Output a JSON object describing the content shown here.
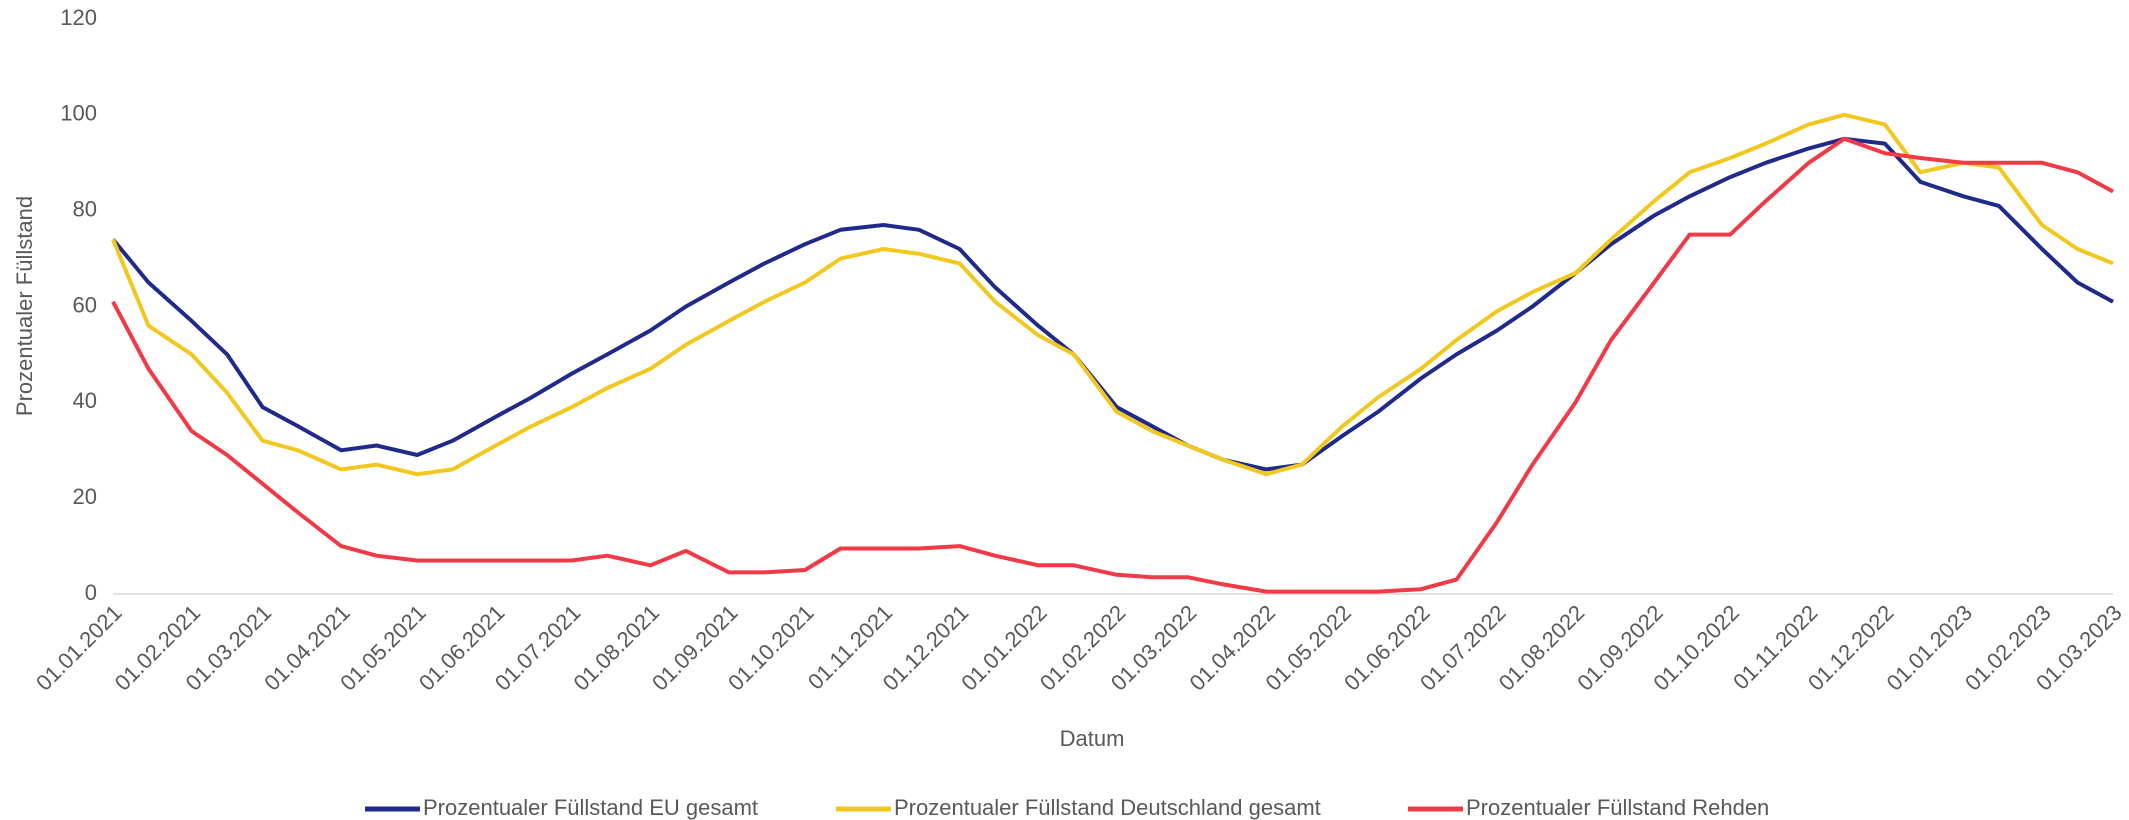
{
  "chart_data": {
    "type": "line",
    "xlabel": "Datum",
    "ylabel": "Prozentualer Füllstand",
    "x": [
      "01.01.2021",
      "15.01.2021",
      "01.02.2021",
      "15.02.2021",
      "01.03.2021",
      "15.03.2021",
      "01.04.2021",
      "15.04.2021",
      "01.05.2021",
      "15.05.2021",
      "01.06.2021",
      "15.06.2021",
      "01.07.2021",
      "15.07.2021",
      "01.08.2021",
      "15.08.2021",
      "01.09.2021",
      "15.09.2021",
      "01.10.2021",
      "15.10.2021",
      "01.11.2021",
      "15.11.2021",
      "01.12.2021",
      "15.12.2021",
      "01.01.2022",
      "15.01.2022",
      "01.02.2022",
      "15.02.2022",
      "01.03.2022",
      "15.03.2022",
      "01.04.2022",
      "15.04.2022",
      "01.05.2022",
      "15.05.2022",
      "01.06.2022",
      "15.06.2022",
      "01.07.2022",
      "15.07.2022",
      "01.08.2022",
      "15.08.2022",
      "01.09.2022",
      "15.09.2022",
      "01.10.2022",
      "15.10.2022",
      "01.11.2022",
      "15.11.2022",
      "01.12.2022",
      "15.12.2022",
      "01.01.2023",
      "15.01.2023",
      "01.02.2023",
      "15.02.2023",
      "01.03.2023"
    ],
    "series": [
      {
        "name": "Prozentualer Füllstand EU gesamt",
        "color": "#1f2a8a",
        "values": [
          74,
          65,
          57,
          50,
          39,
          35,
          30,
          31,
          29,
          32,
          37,
          41,
          46,
          50,
          55,
          60,
          65,
          69,
          73,
          76,
          77,
          76,
          72,
          64,
          56,
          50,
          39,
          35,
          31,
          28,
          26,
          27,
          33,
          38,
          45,
          50,
          55,
          60,
          67,
          73,
          79,
          83,
          87,
          90,
          93,
          95,
          94,
          86,
          83,
          81,
          72,
          65,
          61
        ]
      },
      {
        "name": "Prozentualer Füllstand Deutschland gesamt",
        "color": "#f2c81e",
        "values": [
          74,
          56,
          50,
          42,
          32,
          30,
          26,
          27,
          25,
          26,
          31,
          35,
          39,
          43,
          47,
          52,
          57,
          61,
          65,
          70,
          72,
          71,
          69,
          61,
          54,
          50,
          38,
          34,
          31,
          28,
          25,
          27,
          35,
          41,
          47,
          53,
          59,
          63,
          67,
          74,
          82,
          88,
          91,
          94,
          98,
          100,
          98,
          88,
          90,
          89,
          77,
          72,
          69
        ]
      },
      {
        "name": "Prozentualer Füllstand Rehden",
        "color": "#f03a47",
        "values": [
          61,
          47,
          34,
          29,
          23,
          17,
          10,
          8,
          7,
          7,
          7,
          7,
          7,
          8,
          6,
          9,
          4.5,
          4.5,
          5,
          9.5,
          9.5,
          9.5,
          10,
          8,
          6,
          6,
          4,
          3.5,
          3.5,
          2,
          0.5,
          0.5,
          0.5,
          0.5,
          1,
          3,
          15,
          27,
          40,
          53,
          65,
          75,
          75,
          82,
          90,
          95,
          92,
          91,
          90,
          90,
          90,
          88,
          84
        ]
      }
    ],
    "xlim": [
      "01.01.2021",
      "01.03.2023"
    ],
    "xticks": [
      "01.01.2021",
      "01.02.2021",
      "01.03.2021",
      "01.04.2021",
      "01.05.2021",
      "01.06.2021",
      "01.07.2021",
      "01.08.2021",
      "01.09.2021",
      "01.10.2021",
      "01.11.2021",
      "01.12.2021",
      "01.01.2022",
      "01.02.2022",
      "01.03.2022",
      "01.04.2022",
      "01.05.2022",
      "01.06.2022",
      "01.07.2022",
      "01.08.2022",
      "01.09.2022",
      "01.10.2022",
      "01.11.2022",
      "01.12.2022",
      "01.01.2023",
      "01.02.2023",
      "01.03.2023"
    ],
    "ylim": [
      0,
      120
    ],
    "yticks": [
      0,
      20,
      40,
      60,
      80,
      100,
      120
    ],
    "grid": false,
    "legend": "bottom"
  }
}
